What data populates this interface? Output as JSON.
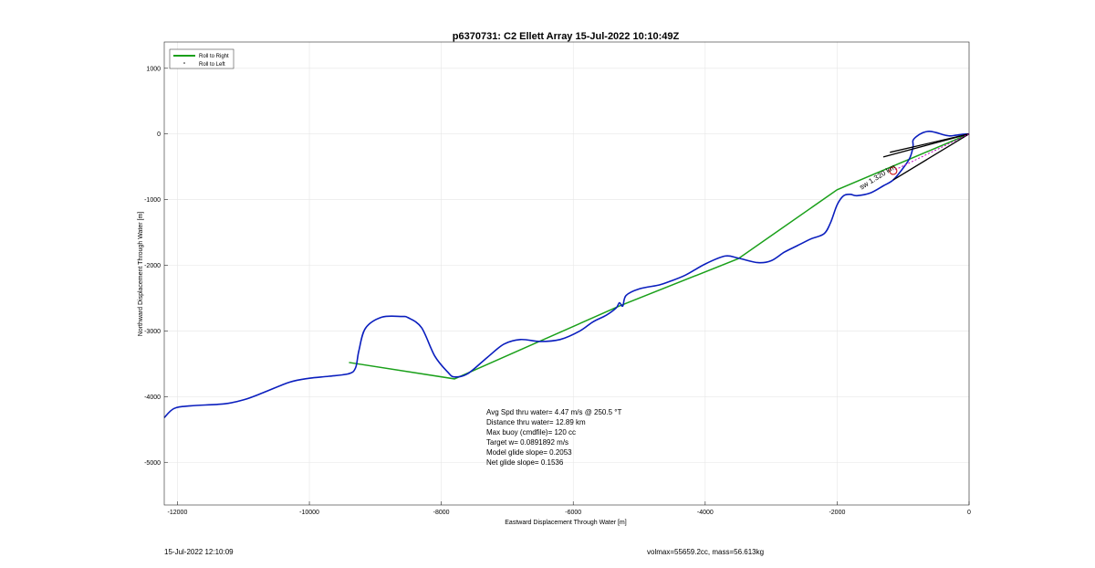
{
  "chart_data": {
    "type": "line",
    "title": "p6370731: C2 Ellett Array 15-Jul-2022 10:10:49Z",
    "xlabel": "Eastward Displacement Through Water [m]",
    "ylabel": "Northward Displacement Through Water [m]",
    "xlim": [
      -12200,
      0
    ],
    "ylim": [
      -5650,
      1400
    ],
    "xticks": [
      -12000,
      -10000,
      -8000,
      -6000,
      -4000,
      -2000,
      0
    ],
    "yticks": [
      -5000,
      -4000,
      -3000,
      -2000,
      -1000,
      0,
      1000
    ],
    "grid": true,
    "legend_position": "top-left",
    "legend": [
      {
        "label": "Roll to Right",
        "color": "#1aa01a",
        "style": "line"
      },
      {
        "label": "Roll to Left",
        "color": "#1a1a1a",
        "style": "dot"
      }
    ],
    "series": [
      {
        "name": "Roll to Right",
        "color": "#1aa01a",
        "x": [
          0,
          -2000,
          -3500,
          -5300,
          -7800,
          -9400
        ],
        "y": [
          0,
          -850,
          -1900,
          -2620,
          -3730,
          -3480
        ]
      },
      {
        "color": "#0a1ebe",
        "x": [
          -12200,
          -12050,
          -11800,
          -11300,
          -11000,
          -10700,
          -10300,
          -10000,
          -9700,
          -9400,
          -9300,
          -9250,
          -9150,
          -8900,
          -8600,
          -8500,
          -8300,
          -8100,
          -7900,
          -7800,
          -7600,
          -7300,
          -7050,
          -6800,
          -6500,
          -6200,
          -5900,
          -5700,
          -5500,
          -5350,
          -5300,
          -5250,
          -5200,
          -5000,
          -4700,
          -4550,
          -4300,
          -4000,
          -3700,
          -3500,
          -3200,
          -3000,
          -2800,
          -2600,
          -2400,
          -2200,
          -2100,
          -2000,
          -1900,
          -1800,
          -1700,
          -1500,
          -1300,
          -1150,
          -1000,
          -900,
          -850,
          -850,
          -800,
          -700,
          -600,
          -500,
          -400,
          -300,
          -200,
          -100,
          0
        ],
        "y": [
          -4320,
          -4180,
          -4140,
          -4110,
          -4050,
          -3940,
          -3780,
          -3720,
          -3690,
          -3650,
          -3560,
          -3300,
          -2960,
          -2790,
          -2780,
          -2800,
          -2950,
          -3380,
          -3630,
          -3700,
          -3650,
          -3400,
          -3200,
          -3130,
          -3160,
          -3130,
          -3000,
          -2860,
          -2760,
          -2650,
          -2570,
          -2620,
          -2460,
          -2360,
          -2300,
          -2250,
          -2150,
          -1980,
          -1860,
          -1890,
          -1960,
          -1930,
          -1800,
          -1700,
          -1600,
          -1520,
          -1350,
          -1080,
          -940,
          -920,
          -940,
          -900,
          -790,
          -700,
          -520,
          -370,
          -200,
          -100,
          -40,
          20,
          40,
          20,
          -10,
          -30,
          -20,
          -5,
          0
        ]
      }
    ],
    "annotations": [
      "Avg Spd thru water=  4.47 m/s @ 250.5 °T",
      "Distance thru water= 12.89 km",
      "Max buoy (cmdfile)= 120 cc",
      "Target w= 0.0891892 m/s",
      "Model glide slope= 0.2053",
      "Net glide slope= 0.1536"
    ],
    "rotated_label": "sw 1.320 km"
  },
  "footer": {
    "timestamp": "15-Jul-2022 12:10:09",
    "stats": "volmax=55659.2cc, mass=56.613kg"
  },
  "colors": {
    "track": "#0a1ebe",
    "roll_right": "#1aa01a",
    "marker": "#d02020",
    "grid": "#e6e6e6"
  }
}
